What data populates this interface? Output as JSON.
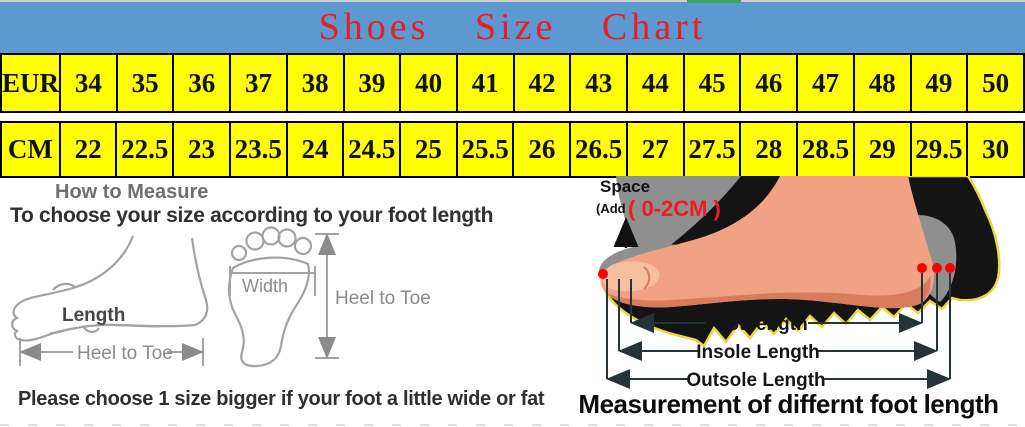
{
  "header": {
    "title": "Shoes Size Chart"
  },
  "size_table": {
    "rows": [
      {
        "label": "EUR",
        "values": [
          "34",
          "35",
          "36",
          "37",
          "38",
          "39",
          "40",
          "41",
          "42",
          "43",
          "44",
          "45",
          "46",
          "47",
          "48",
          "49",
          "50"
        ]
      },
      {
        "label": "CM",
        "values": [
          "22",
          "22.5",
          "23",
          "23.5",
          "24",
          "24.5",
          "25",
          "25.5",
          "26",
          "26.5",
          "27",
          "27.5",
          "28",
          "28.5",
          "29",
          "29.5",
          "30"
        ]
      }
    ]
  },
  "chart_data": {
    "type": "table",
    "title": "Shoes Size Chart",
    "columns": [
      "EUR",
      "CM"
    ],
    "pairs": [
      [
        34,
        22
      ],
      [
        35,
        22.5
      ],
      [
        36,
        23
      ],
      [
        37,
        23.5
      ],
      [
        38,
        24
      ],
      [
        39,
        24.5
      ],
      [
        40,
        25
      ],
      [
        41,
        25.5
      ],
      [
        42,
        26
      ],
      [
        43,
        26.5
      ],
      [
        44,
        27
      ],
      [
        45,
        27.5
      ],
      [
        46,
        28
      ],
      [
        47,
        28.5
      ],
      [
        48,
        29
      ],
      [
        49,
        29.5
      ],
      [
        50,
        30
      ]
    ]
  },
  "how_to_measure": {
    "heading": "How to Measure",
    "instruction": "To choose your size according to your foot length",
    "side_view": {
      "length_label": "Length",
      "heel_to_toe_label": "Heel to Toe"
    },
    "footprint": {
      "width_label": "Width",
      "heel_to_toe_label": "Heel to Toe"
    },
    "note": "Please choose 1 size bigger if your foot a little wide or fat"
  },
  "measurement_diagram": {
    "space_label": "Space",
    "add_prefix": "(Add",
    "add_value": "( 0-2CM )",
    "foot_length_label": "Foot length",
    "insole_length_label": "Insole Length",
    "outsole_length_label": "Outsole Length",
    "caption": "Measurement of differnt foot length"
  },
  "colors": {
    "header-bg": "#5b99d0",
    "title-red": "#ec1c24",
    "cell-yellow": "#ffff00",
    "text-dark": "#303030",
    "text-gray": "#6f6f6f",
    "line-gray": "#a3a3a3",
    "label-gray": "#8b8b8b",
    "foot-skin": "#f2a284",
    "foot-shadow": "#d67c5c",
    "foot-light": "#f6bf9f",
    "sole-black": "#141414",
    "sole-outline-yellow": "#e8d940",
    "lining-gray": "#8f8f8f",
    "marker-red": "#fe0000",
    "arrow-dark": "#26343a",
    "top-strip": "#cfcfcf",
    "green-accent": "#3fa35c"
  }
}
